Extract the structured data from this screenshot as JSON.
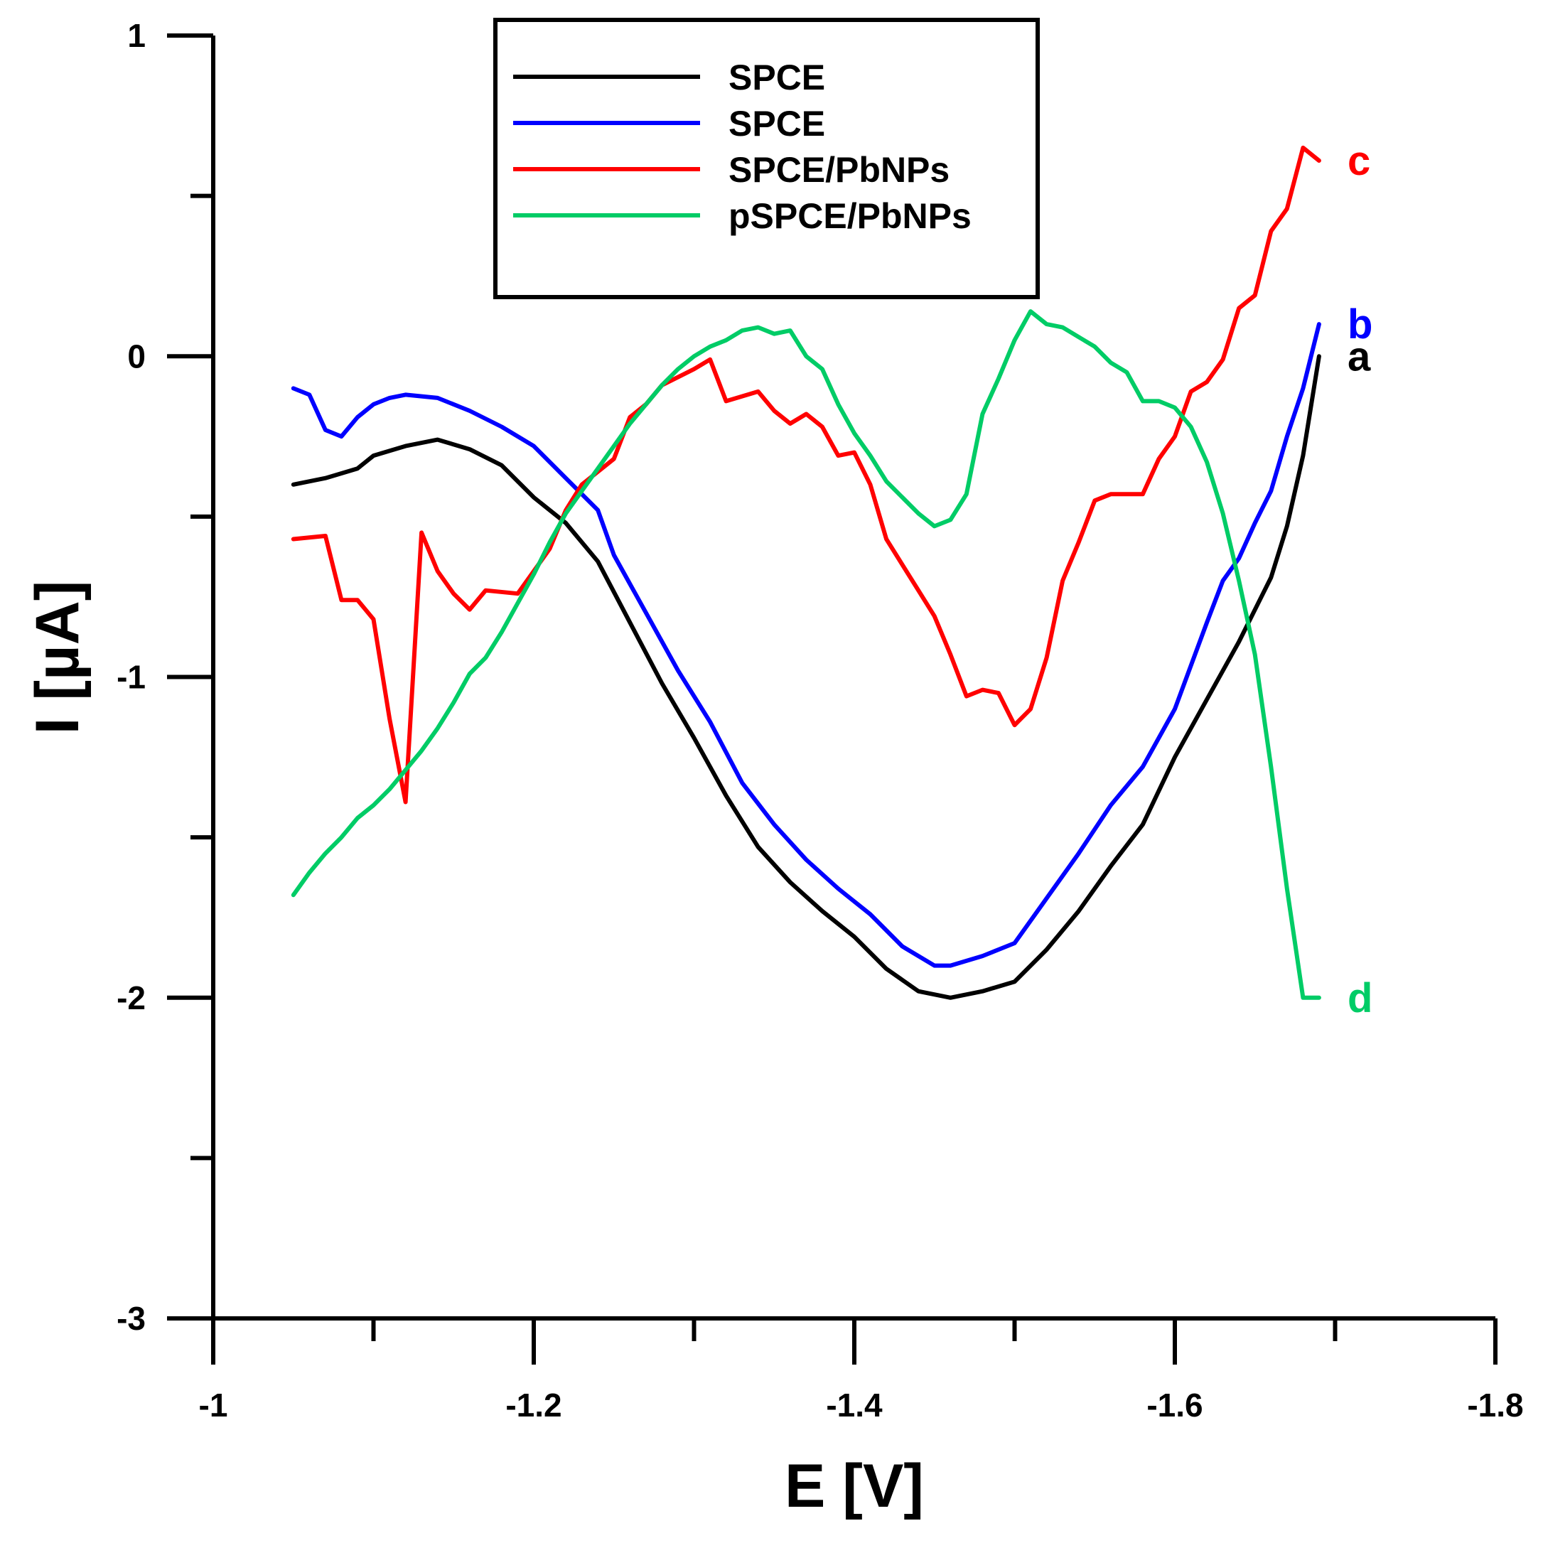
{
  "chart_data": {
    "type": "line",
    "title": "",
    "xlabel": "E [V]",
    "ylabel": "I [µA]",
    "xlim": [
      -1.0,
      -1.8
    ],
    "ylim": [
      -3,
      1
    ],
    "x_ticks": [
      -1,
      -1.2,
      -1.4,
      -1.6,
      -1.8
    ],
    "x_tick_labels": [
      "-1",
      "-1.2",
      "-1.4",
      "-1.6",
      "-1.8"
    ],
    "y_ticks": [
      -3,
      -2,
      -1,
      0,
      1
    ],
    "y_tick_labels": [
      "-3",
      "-2",
      "-1",
      "0",
      "1"
    ],
    "legend_position": "top-center",
    "series": [
      {
        "name": "SPCE",
        "curve_label": "a",
        "color": "#000000",
        "x": [
          -1.05,
          -1.07,
          -1.09,
          -1.1,
          -1.12,
          -1.14,
          -1.16,
          -1.18,
          -1.2,
          -1.22,
          -1.24,
          -1.26,
          -1.28,
          -1.3,
          -1.32,
          -1.34,
          -1.36,
          -1.38,
          -1.4,
          -1.42,
          -1.44,
          -1.46,
          -1.48,
          -1.5,
          -1.52,
          -1.54,
          -1.56,
          -1.58,
          -1.6,
          -1.62,
          -1.64,
          -1.66,
          -1.67,
          -1.68,
          -1.69
        ],
        "y": [
          -0.4,
          -0.38,
          -0.35,
          -0.31,
          -0.28,
          -0.26,
          -0.29,
          -0.34,
          -0.44,
          -0.52,
          -0.64,
          -0.83,
          -1.02,
          -1.19,
          -1.37,
          -1.53,
          -1.64,
          -1.73,
          -1.81,
          -1.91,
          -1.98,
          -2.0,
          -1.98,
          -1.95,
          -1.85,
          -1.73,
          -1.59,
          -1.46,
          -1.25,
          -1.07,
          -0.89,
          -0.69,
          -0.53,
          -0.31,
          0.0
        ]
      },
      {
        "name": "SPCE",
        "curve_label": "b",
        "color": "#0000ff",
        "x": [
          -1.05,
          -1.06,
          -1.07,
          -1.08,
          -1.09,
          -1.1,
          -1.11,
          -1.12,
          -1.14,
          -1.16,
          -1.18,
          -1.2,
          -1.22,
          -1.24,
          -1.25,
          -1.27,
          -1.29,
          -1.31,
          -1.33,
          -1.35,
          -1.37,
          -1.39,
          -1.41,
          -1.43,
          -1.45,
          -1.46,
          -1.48,
          -1.5,
          -1.52,
          -1.54,
          -1.56,
          -1.58,
          -1.6,
          -1.62,
          -1.63,
          -1.64,
          -1.65,
          -1.66,
          -1.67,
          -1.68,
          -1.69
        ],
        "y": [
          -0.1,
          -0.12,
          -0.23,
          -0.25,
          -0.19,
          -0.15,
          -0.13,
          -0.12,
          -0.13,
          -0.17,
          -0.22,
          -0.28,
          -0.38,
          -0.48,
          -0.62,
          -0.8,
          -0.98,
          -1.14,
          -1.33,
          -1.46,
          -1.57,
          -1.66,
          -1.74,
          -1.84,
          -1.9,
          -1.9,
          -1.87,
          -1.83,
          -1.69,
          -1.55,
          -1.4,
          -1.28,
          -1.1,
          -0.83,
          -0.7,
          -0.63,
          -0.52,
          -0.42,
          -0.25,
          -0.1,
          0.1
        ]
      },
      {
        "name": "SPCE/PbNPs",
        "curve_label": "c",
        "color": "#ff0000",
        "x": [
          -1.05,
          -1.07,
          -1.08,
          -1.09,
          -1.1,
          -1.11,
          -1.12,
          -1.13,
          -1.14,
          -1.15,
          -1.16,
          -1.17,
          -1.19,
          -1.2,
          -1.21,
          -1.22,
          -1.23,
          -1.25,
          -1.26,
          -1.27,
          -1.28,
          -1.3,
          -1.31,
          -1.32,
          -1.34,
          -1.35,
          -1.36,
          -1.37,
          -1.38,
          -1.39,
          -1.4,
          -1.41,
          -1.42,
          -1.43,
          -1.44,
          -1.45,
          -1.46,
          -1.47,
          -1.48,
          -1.49,
          -1.5,
          -1.51,
          -1.52,
          -1.53,
          -1.54,
          -1.55,
          -1.56,
          -1.57,
          -1.58,
          -1.59,
          -1.6,
          -1.61,
          -1.62,
          -1.63,
          -1.64,
          -1.65,
          -1.66,
          -1.67,
          -1.68,
          -1.69
        ],
        "y": [
          -0.57,
          -0.56,
          -0.76,
          -0.76,
          -0.82,
          -1.13,
          -1.39,
          -0.55,
          -0.67,
          -0.74,
          -0.79,
          -0.73,
          -0.74,
          -0.67,
          -0.6,
          -0.48,
          -0.4,
          -0.32,
          -0.19,
          -0.15,
          -0.09,
          -0.04,
          -0.01,
          -0.14,
          -0.11,
          -0.17,
          -0.21,
          -0.18,
          -0.22,
          -0.31,
          -0.3,
          -0.4,
          -0.57,
          -0.65,
          -0.73,
          -0.81,
          -0.93,
          -1.06,
          -1.04,
          -1.05,
          -1.15,
          -1.1,
          -0.94,
          -0.7,
          -0.58,
          -0.45,
          -0.43,
          -0.43,
          -0.43,
          -0.32,
          -0.25,
          -0.11,
          -0.08,
          -0.01,
          0.15,
          0.19,
          0.39,
          0.46,
          0.65,
          0.61
        ]
      },
      {
        "name": "pSPCE/PbNPs",
        "curve_label": "d",
        "color": "#00cc66",
        "x": [
          -1.05,
          -1.06,
          -1.07,
          -1.08,
          -1.09,
          -1.1,
          -1.11,
          -1.12,
          -1.13,
          -1.14,
          -1.15,
          -1.16,
          -1.17,
          -1.18,
          -1.19,
          -1.2,
          -1.21,
          -1.22,
          -1.23,
          -1.24,
          -1.25,
          -1.26,
          -1.27,
          -1.28,
          -1.29,
          -1.3,
          -1.31,
          -1.32,
          -1.33,
          -1.34,
          -1.35,
          -1.36,
          -1.37,
          -1.38,
          -1.39,
          -1.4,
          -1.41,
          -1.42,
          -1.43,
          -1.44,
          -1.45,
          -1.46,
          -1.47,
          -1.48,
          -1.49,
          -1.5,
          -1.51,
          -1.52,
          -1.53,
          -1.54,
          -1.55,
          -1.56,
          -1.57,
          -1.58,
          -1.59,
          -1.6,
          -1.61,
          -1.62,
          -1.63,
          -1.64,
          -1.65,
          -1.66,
          -1.67,
          -1.68,
          -1.69
        ],
        "y": [
          -1.68,
          -1.61,
          -1.55,
          -1.5,
          -1.44,
          -1.4,
          -1.35,
          -1.29,
          -1.23,
          -1.16,
          -1.08,
          -0.99,
          -0.94,
          -0.86,
          -0.77,
          -0.68,
          -0.58,
          -0.49,
          -0.42,
          -0.35,
          -0.28,
          -0.21,
          -0.15,
          -0.09,
          -0.04,
          0.0,
          0.03,
          0.05,
          0.08,
          0.09,
          0.07,
          0.08,
          0.0,
          -0.04,
          -0.15,
          -0.24,
          -0.31,
          -0.39,
          -0.44,
          -0.49,
          -0.53,
          -0.51,
          -0.43,
          -0.18,
          -0.07,
          0.05,
          0.14,
          0.1,
          0.09,
          0.06,
          0.03,
          -0.02,
          -0.05,
          -0.14,
          -0.14,
          -0.16,
          -0.22,
          -0.33,
          -0.49,
          -0.7,
          -0.93,
          -1.28,
          -1.66,
          -2.0,
          -2.0
        ]
      }
    ]
  }
}
